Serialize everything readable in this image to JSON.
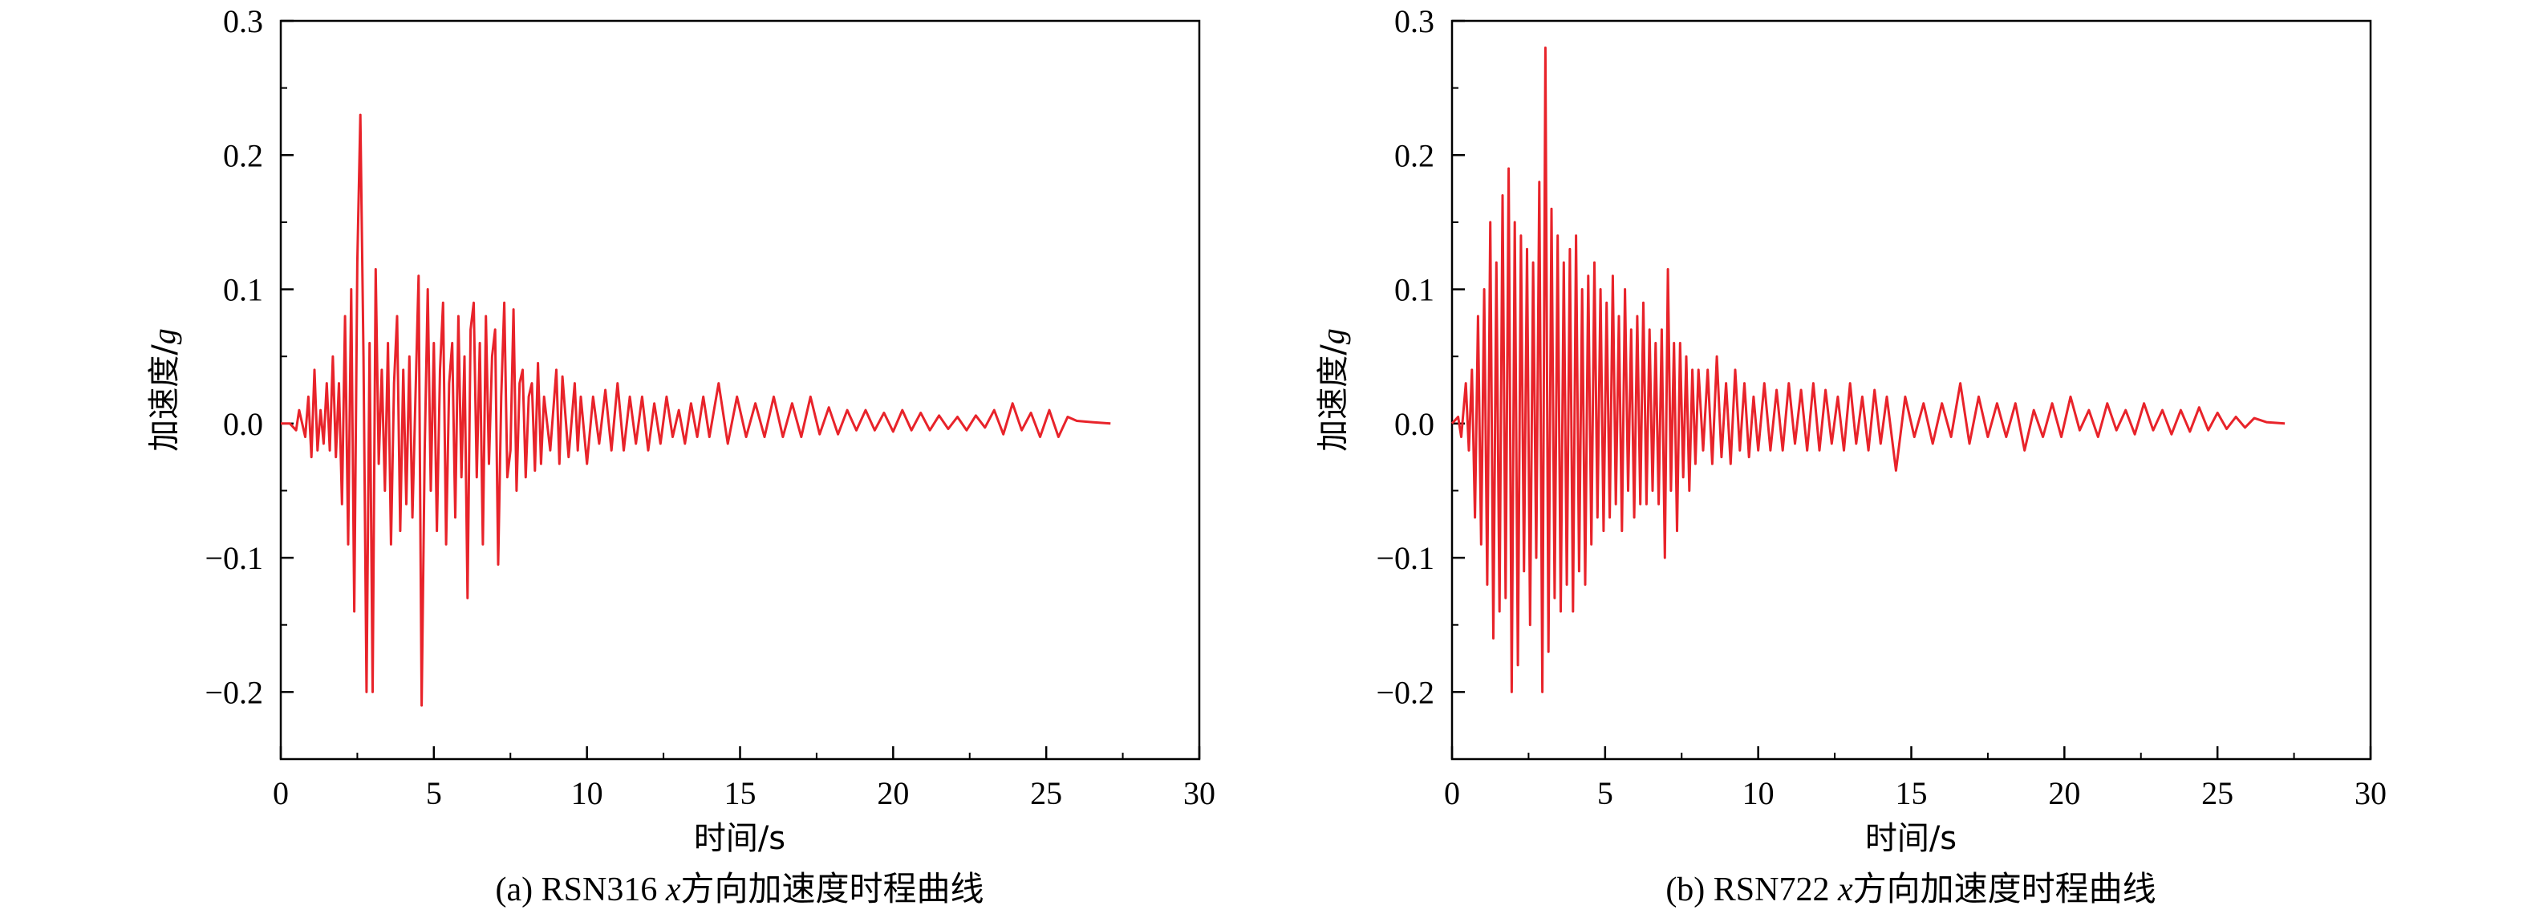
{
  "chart_data": [
    {
      "type": "line",
      "caption_prefix": "(a) RSN316 ",
      "caption_var": "x",
      "caption_suffix": "方向加速度时程曲线",
      "xlabel": "时间/s",
      "ylabel_prefix": "加速度/",
      "ylabel_unit": "g",
      "xlim": [
        0,
        30
      ],
      "ylim": [
        -0.25,
        0.3
      ],
      "xticks": [
        0,
        5,
        10,
        15,
        20,
        25,
        30
      ],
      "yticks": [
        -0.2,
        -0.1,
        0.0,
        0.1,
        0.2,
        0.3
      ],
      "ytick_labels": [
        "−0.2",
        "−0.1",
        "0.0",
        "0.1",
        "0.2",
        "0.3"
      ],
      "line_color": "#e8232a",
      "series": [
        {
          "x": [
            0,
            0.3,
            0.5,
            0.6,
            0.8,
            0.9,
            1.0,
            1.1,
            1.2,
            1.3,
            1.4,
            1.5,
            1.6,
            1.7,
            1.8,
            1.9,
            2.0,
            2.1,
            2.2,
            2.3,
            2.4,
            2.5,
            2.6,
            2.7,
            2.8,
            2.9,
            3.0,
            3.1,
            3.2,
            3.3,
            3.4,
            3.5,
            3.6,
            3.7,
            3.8,
            3.9,
            4.0,
            4.1,
            4.2,
            4.3,
            4.4,
            4.5,
            4.6,
            4.7,
            4.8,
            4.9,
            5.0,
            5.1,
            5.2,
            5.3,
            5.4,
            5.5,
            5.6,
            5.7,
            5.8,
            5.9,
            6.0,
            6.1,
            6.2,
            6.3,
            6.4,
            6.5,
            6.6,
            6.7,
            6.8,
            6.9,
            7.0,
            7.1,
            7.2,
            7.3,
            7.4,
            7.5,
            7.6,
            7.7,
            7.8,
            7.9,
            8.0,
            8.1,
            8.2,
            8.3,
            8.4,
            8.5,
            8.6,
            8.8,
            9.0,
            9.1,
            9.2,
            9.4,
            9.6,
            9.7,
            9.8,
            10.0,
            10.2,
            10.4,
            10.6,
            10.8,
            11.0,
            11.2,
            11.4,
            11.6,
            11.8,
            12.0,
            12.2,
            12.4,
            12.6,
            12.8,
            13.0,
            13.2,
            13.4,
            13.6,
            13.8,
            14.0,
            14.3,
            14.6,
            14.9,
            15.2,
            15.5,
            15.8,
            16.1,
            16.4,
            16.7,
            17.0,
            17.3,
            17.6,
            17.9,
            18.2,
            18.5,
            18.8,
            19.1,
            19.4,
            19.7,
            20.0,
            20.3,
            20.6,
            20.9,
            21.2,
            21.5,
            21.8,
            22.1,
            22.4,
            22.7,
            23.0,
            23.3,
            23.6,
            23.9,
            24.2,
            24.5,
            24.8,
            25.1,
            25.4,
            25.7,
            26.0,
            26.5,
            27.1
          ],
          "y": [
            0,
            0,
            -0.005,
            0.01,
            -0.01,
            0.02,
            -0.025,
            0.04,
            -0.02,
            0.01,
            -0.015,
            0.03,
            -0.02,
            0.05,
            -0.025,
            0.03,
            -0.06,
            0.08,
            -0.09,
            0.1,
            -0.14,
            0.12,
            0.23,
            0.05,
            -0.2,
            0.06,
            -0.2,
            0.115,
            -0.03,
            0.04,
            -0.05,
            0.06,
            -0.09,
            0.03,
            0.08,
            -0.08,
            0.04,
            -0.06,
            0.05,
            -0.07,
            0.02,
            0.11,
            -0.21,
            -0.02,
            0.1,
            -0.05,
            0.06,
            -0.08,
            0.04,
            0.09,
            -0.09,
            0.03,
            0.06,
            -0.07,
            0.08,
            -0.04,
            0.05,
            -0.13,
            0.07,
            0.09,
            -0.04,
            0.06,
            -0.09,
            0.08,
            -0.03,
            0.05,
            0.07,
            -0.105,
            0.02,
            0.09,
            -0.04,
            -0.02,
            0.085,
            -0.05,
            0.03,
            0.04,
            -0.04,
            0.02,
            0.03,
            -0.035,
            0.045,
            -0.03,
            0.02,
            -0.02,
            0.04,
            -0.03,
            0.035,
            -0.025,
            0.03,
            -0.02,
            0.02,
            -0.03,
            0.02,
            -0.015,
            0.025,
            -0.02,
            0.03,
            -0.02,
            0.02,
            -0.015,
            0.02,
            -0.02,
            0.015,
            -0.015,
            0.02,
            -0.01,
            0.01,
            -0.015,
            0.015,
            -0.01,
            0.02,
            -0.01,
            0.03,
            -0.015,
            0.02,
            -0.01,
            0.015,
            -0.01,
            0.02,
            -0.01,
            0.015,
            -0.01,
            0.02,
            -0.008,
            0.012,
            -0.008,
            0.01,
            -0.005,
            0.01,
            -0.005,
            0.008,
            -0.006,
            0.01,
            -0.005,
            0.008,
            -0.005,
            0.006,
            -0.004,
            0.005,
            -0.005,
            0.006,
            -0.003,
            0.01,
            -0.008,
            0.015,
            -0.005,
            0.008,
            -0.01,
            0.01,
            -0.01,
            0.005,
            0.002,
            0.001,
            0
          ]
        }
      ]
    },
    {
      "type": "line",
      "caption_prefix": "(b) RSN722 ",
      "caption_var": "x",
      "caption_suffix": "方向加速度时程曲线",
      "xlabel": "时间/s",
      "ylabel_prefix": "加速度/",
      "ylabel_unit": "g",
      "xlim": [
        0,
        30
      ],
      "ylim": [
        -0.25,
        0.3
      ],
      "xticks": [
        0,
        5,
        10,
        15,
        20,
        25,
        30
      ],
      "yticks": [
        -0.2,
        -0.1,
        0.0,
        0.1,
        0.2,
        0.3
      ],
      "ytick_labels": [
        "−0.2",
        "−0.1",
        "0.0",
        "0.1",
        "0.2",
        "0.3"
      ],
      "line_color": "#e8232a",
      "series": [
        {
          "x": [
            0,
            0.2,
            0.3,
            0.45,
            0.55,
            0.65,
            0.75,
            0.85,
            0.95,
            1.05,
            1.15,
            1.25,
            1.35,
            1.45,
            1.55,
            1.65,
            1.75,
            1.85,
            1.95,
            2.05,
            2.15,
            2.25,
            2.35,
            2.45,
            2.55,
            2.65,
            2.75,
            2.85,
            2.95,
            3.05,
            3.15,
            3.25,
            3.35,
            3.45,
            3.55,
            3.65,
            3.75,
            3.85,
            3.95,
            4.05,
            4.15,
            4.25,
            4.35,
            4.45,
            4.55,
            4.65,
            4.75,
            4.85,
            4.95,
            5.05,
            5.15,
            5.25,
            5.35,
            5.45,
            5.55,
            5.65,
            5.75,
            5.85,
            5.95,
            6.05,
            6.15,
            6.25,
            6.35,
            6.45,
            6.55,
            6.65,
            6.75,
            6.85,
            6.95,
            7.05,
            7.15,
            7.25,
            7.35,
            7.45,
            7.55,
            7.65,
            7.75,
            7.85,
            7.95,
            8.05,
            8.2,
            8.35,
            8.5,
            8.65,
            8.8,
            8.95,
            9.1,
            9.25,
            9.4,
            9.55,
            9.7,
            9.85,
            10.0,
            10.2,
            10.4,
            10.6,
            10.8,
            11.0,
            11.2,
            11.4,
            11.6,
            11.8,
            12.0,
            12.2,
            12.4,
            12.6,
            12.8,
            13.0,
            13.2,
            13.4,
            13.6,
            13.8,
            14.0,
            14.2,
            14.5,
            14.8,
            15.1,
            15.4,
            15.7,
            16.0,
            16.3,
            16.6,
            16.9,
            17.2,
            17.5,
            17.8,
            18.1,
            18.4,
            18.7,
            19.0,
            19.3,
            19.6,
            19.9,
            20.2,
            20.5,
            20.8,
            21.1,
            21.4,
            21.7,
            22.0,
            22.3,
            22.6,
            22.9,
            23.2,
            23.5,
            23.8,
            24.1,
            24.4,
            24.7,
            25.0,
            25.3,
            25.6,
            25.9,
            26.2,
            26.6,
            27.2
          ],
          "y": [
            0,
            0.005,
            -0.01,
            0.03,
            -0.02,
            0.04,
            -0.07,
            0.08,
            -0.09,
            0.1,
            -0.12,
            0.15,
            -0.16,
            0.12,
            -0.14,
            0.17,
            -0.13,
            0.19,
            -0.2,
            0.15,
            -0.18,
            0.14,
            -0.11,
            0.13,
            -0.15,
            0.12,
            -0.1,
            0.18,
            -0.2,
            0.28,
            -0.17,
            0.16,
            -0.13,
            0.14,
            -0.14,
            0.12,
            -0.12,
            0.13,
            -0.14,
            0.14,
            -0.11,
            0.1,
            -0.12,
            0.11,
            -0.09,
            0.12,
            -0.07,
            0.1,
            -0.08,
            0.09,
            -0.07,
            0.11,
            -0.06,
            0.08,
            -0.08,
            0.1,
            -0.05,
            0.07,
            -0.07,
            0.08,
            -0.06,
            0.09,
            -0.06,
            0.07,
            -0.05,
            0.06,
            -0.06,
            0.07,
            -0.1,
            0.115,
            -0.05,
            0.06,
            -0.08,
            0.06,
            -0.04,
            0.05,
            -0.05,
            0.04,
            -0.03,
            0.04,
            -0.02,
            0.04,
            -0.03,
            0.05,
            -0.025,
            0.03,
            -0.03,
            0.04,
            -0.02,
            0.03,
            -0.025,
            0.02,
            -0.02,
            0.03,
            -0.02,
            0.025,
            -0.02,
            0.03,
            -0.015,
            0.025,
            -0.02,
            0.03,
            -0.02,
            0.025,
            -0.015,
            0.02,
            -0.02,
            0.03,
            -0.015,
            0.02,
            -0.02,
            0.025,
            -0.015,
            0.02,
            -0.035,
            0.02,
            -0.01,
            0.015,
            -0.015,
            0.015,
            -0.01,
            0.03,
            -0.015,
            0.02,
            -0.01,
            0.015,
            -0.01,
            0.015,
            -0.02,
            0.01,
            -0.01,
            0.015,
            -0.01,
            0.02,
            -0.005,
            0.01,
            -0.01,
            0.015,
            -0.005,
            0.01,
            -0.008,
            0.015,
            -0.005,
            0.01,
            -0.008,
            0.01,
            -0.006,
            0.012,
            -0.005,
            0.008,
            -0.004,
            0.005,
            -0.003,
            0.004,
            0.001,
            0
          ]
        }
      ]
    }
  ]
}
